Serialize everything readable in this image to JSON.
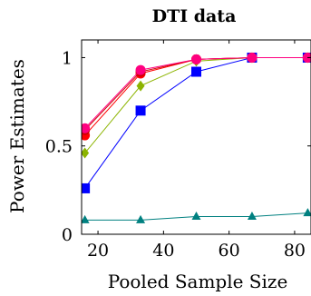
{
  "chart_data": {
    "type": "line",
    "title": "DTI data",
    "xlabel": "Pooled Sample Size",
    "ylabel": "Power Estimates",
    "xlim": [
      15,
      85
    ],
    "ylim": [
      0,
      1.1
    ],
    "x_ticks": [
      20,
      40,
      60,
      80
    ],
    "y_ticks": [
      0,
      0.5,
      1
    ],
    "grid": false,
    "legend": "none",
    "x": [
      16,
      33,
      50,
      67,
      84
    ],
    "series": [
      {
        "color": "#ff0080",
        "marker": "circle",
        "values": [
          0.6,
          0.93,
          0.99,
          1.0,
          1.0
        ]
      },
      {
        "color": "#cc0000",
        "marker": "circle",
        "values": [
          0.59,
          0.92,
          0.99,
          1.0,
          1.0
        ]
      },
      {
        "color": "#ff0000",
        "marker": "circle",
        "values": [
          0.56,
          0.91,
          0.99,
          1.0,
          1.0
        ]
      },
      {
        "color": "#8cb400",
        "marker": "diamond",
        "values": [
          0.46,
          0.84,
          0.98,
          1.0,
          1.0
        ]
      },
      {
        "color": "#0000ff",
        "marker": "square",
        "values": [
          0.26,
          0.7,
          0.92,
          1.0,
          1.0
        ]
      },
      {
        "color": "#008080",
        "marker": "triangle",
        "values": [
          0.08,
          0.08,
          0.1,
          0.1,
          0.12
        ]
      }
    ]
  }
}
